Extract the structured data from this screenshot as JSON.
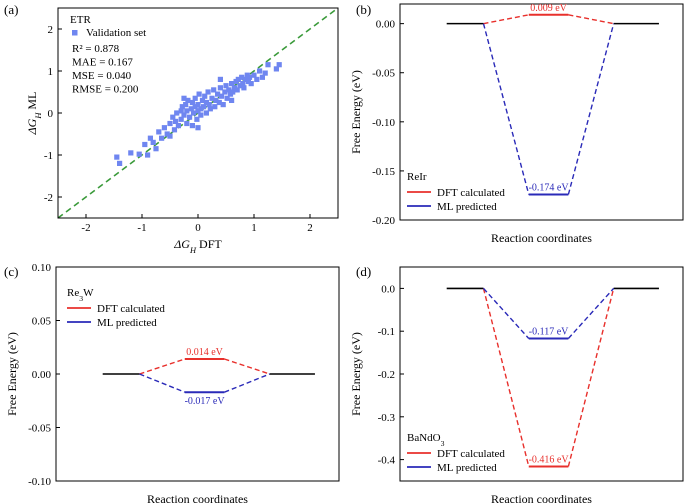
{
  "chart_data": [
    {
      "id": "a",
      "type": "scatter",
      "panel_label": "(a)",
      "xlabel": "ΔG_H DFT",
      "ylabel": "ΔG_H ML",
      "xlim": [
        -2.5,
        2.5
      ],
      "ylim": [
        -2.5,
        2.5
      ],
      "xticks": [
        -2,
        -1,
        0,
        1,
        2
      ],
      "yticks": [
        -2,
        -1,
        0,
        1,
        2
      ],
      "model": "ETR",
      "legend": "Validation set",
      "metrics": [
        "R² = 0.878",
        "MAE = 0.167",
        "MSE = 0.040",
        "RMSE = 0.200"
      ],
      "reference_line": "y = x",
      "colors": {
        "points": "#6f86f0",
        "reference": "#3a9a3a"
      },
      "points": [
        [
          -1.45,
          -1.05
        ],
        [
          -1.4,
          -1.2
        ],
        [
          -1.2,
          -0.95
        ],
        [
          -1.05,
          -0.98
        ],
        [
          -0.95,
          -0.75
        ],
        [
          -0.9,
          -1.0
        ],
        [
          -0.85,
          -0.6
        ],
        [
          -0.8,
          -0.7
        ],
        [
          -0.75,
          -0.85
        ],
        [
          -0.7,
          -0.45
        ],
        [
          -0.65,
          -0.6
        ],
        [
          -0.6,
          -0.35
        ],
        [
          -0.55,
          -0.5
        ],
        [
          -0.5,
          -0.25
        ],
        [
          -0.5,
          -0.55
        ],
        [
          -0.45,
          -0.1
        ],
        [
          -0.42,
          -0.4
        ],
        [
          -0.4,
          -0.2
        ],
        [
          -0.38,
          0.0
        ],
        [
          -0.35,
          -0.3
        ],
        [
          -0.3,
          0.05
        ],
        [
          -0.3,
          -0.15
        ],
        [
          -0.28,
          0.15
        ],
        [
          -0.25,
          -0.05
        ],
        [
          -0.22,
          0.2
        ],
        [
          -0.2,
          0.05
        ],
        [
          -0.2,
          -0.25
        ],
        [
          -0.18,
          0.3
        ],
        [
          -0.15,
          -0.1
        ],
        [
          -0.12,
          0.1
        ],
        [
          -0.1,
          0.25
        ],
        [
          -0.1,
          -0.3
        ],
        [
          -0.08,
          0.0
        ],
        [
          -0.05,
          0.35
        ],
        [
          -0.05,
          0.15
        ],
        [
          -0.02,
          -0.15
        ],
        [
          0.0,
          0.2
        ],
        [
          0.0,
          0.05
        ],
        [
          0.02,
          0.45
        ],
        [
          0.05,
          0.1
        ],
        [
          0.05,
          -0.05
        ],
        [
          0.08,
          0.3
        ],
        [
          0.1,
          0.15
        ],
        [
          0.12,
          0.4
        ],
        [
          0.15,
          0.0
        ],
        [
          0.15,
          0.25
        ],
        [
          0.18,
          0.5
        ],
        [
          0.2,
          0.2
        ],
        [
          0.22,
          0.1
        ],
        [
          0.25,
          0.35
        ],
        [
          0.28,
          0.55
        ],
        [
          0.3,
          0.15
        ],
        [
          0.32,
          0.3
        ],
        [
          0.35,
          0.45
        ],
        [
          0.38,
          0.25
        ],
        [
          0.4,
          0.6
        ],
        [
          0.42,
          0.4
        ],
        [
          0.45,
          0.2
        ],
        [
          0.48,
          0.5
        ],
        [
          0.5,
          0.65
        ],
        [
          0.52,
          0.35
        ],
        [
          0.55,
          0.55
        ],
        [
          0.58,
          0.45
        ],
        [
          0.6,
          0.7
        ],
        [
          0.62,
          0.5
        ],
        [
          0.65,
          0.6
        ],
        [
          0.68,
          0.75
        ],
        [
          0.7,
          0.55
        ],
        [
          0.72,
          0.8
        ],
        [
          0.75,
          0.65
        ],
        [
          0.78,
          0.85
        ],
        [
          0.8,
          0.7
        ],
        [
          0.82,
          0.6
        ],
        [
          0.85,
          0.8
        ],
        [
          0.88,
          0.9
        ],
        [
          0.9,
          0.75
        ],
        [
          0.92,
          0.85
        ],
        [
          0.95,
          0.7
        ],
        [
          1.0,
          0.9
        ],
        [
          1.05,
          0.8
        ],
        [
          1.1,
          1.0
        ],
        [
          1.15,
          0.85
        ],
        [
          1.2,
          0.95
        ],
        [
          1.25,
          1.15
        ],
        [
          1.4,
          1.05
        ],
        [
          1.45,
          1.15
        ],
        [
          0.4,
          0.8
        ],
        [
          -0.25,
          0.35
        ],
        [
          0.6,
          0.3
        ],
        [
          0.0,
          -0.35
        ]
      ]
    },
    {
      "id": "b",
      "type": "line",
      "panel_label": "(b)",
      "xlabel": "Reaction coordinates",
      "ylabel": "Free Energy (eV)",
      "ylim": [
        -0.2,
        0.02
      ],
      "yticks": [
        0.0,
        -0.05,
        -0.1,
        -0.15,
        -0.2
      ],
      "ytick_labels": [
        "0.00",
        "-0.05",
        "-0.10",
        "-0.15",
        "-0.20"
      ],
      "material": "ReIr",
      "series": [
        {
          "name": "DFT calculated",
          "color": "#e8302c",
          "values": [
            0,
            0.009,
            0
          ],
          "label": "0.009 eV"
        },
        {
          "name": "ML predicted",
          "color": "#2a2ab8",
          "values": [
            0,
            -0.174,
            0
          ],
          "label": "-0.174 eV"
        }
      ]
    },
    {
      "id": "c",
      "type": "line",
      "panel_label": "(c)",
      "xlabel": "Reaction coordinates",
      "ylabel": "Free Energy (eV)",
      "ylim": [
        -0.1,
        0.1
      ],
      "yticks": [
        0.1,
        0.05,
        0.0,
        -0.05,
        -0.1
      ],
      "ytick_labels": [
        "0.10",
        "0.05",
        "0.00",
        "-0.05",
        "-0.10"
      ],
      "material": "Re3W",
      "series": [
        {
          "name": "DFT calculated",
          "color": "#e8302c",
          "values": [
            0,
            0.014,
            0
          ],
          "label": "0.014 eV"
        },
        {
          "name": "ML predicted",
          "color": "#2a2ab8",
          "values": [
            0,
            -0.017,
            0
          ],
          "label": "-0.017 eV"
        }
      ]
    },
    {
      "id": "d",
      "type": "line",
      "panel_label": "(d)",
      "xlabel": "Reaction coordinates",
      "ylabel": "Free Energy (eV)",
      "ylim": [
        -0.45,
        0.05
      ],
      "yticks": [
        0.0,
        -0.1,
        -0.2,
        -0.3,
        -0.4
      ],
      "ytick_labels": [
        "0.0",
        "-0.1",
        "-0.2",
        "-0.3",
        "-0.4"
      ],
      "material": "BaNdO3",
      "series": [
        {
          "name": "DFT calculated",
          "color": "#e8302c",
          "values": [
            0,
            -0.416,
            0
          ],
          "label": "-0.416 eV"
        },
        {
          "name": "ML predicted",
          "color": "#2a2ab8",
          "values": [
            0,
            -0.117,
            0
          ],
          "label": "-0.117 eV"
        }
      ]
    }
  ]
}
